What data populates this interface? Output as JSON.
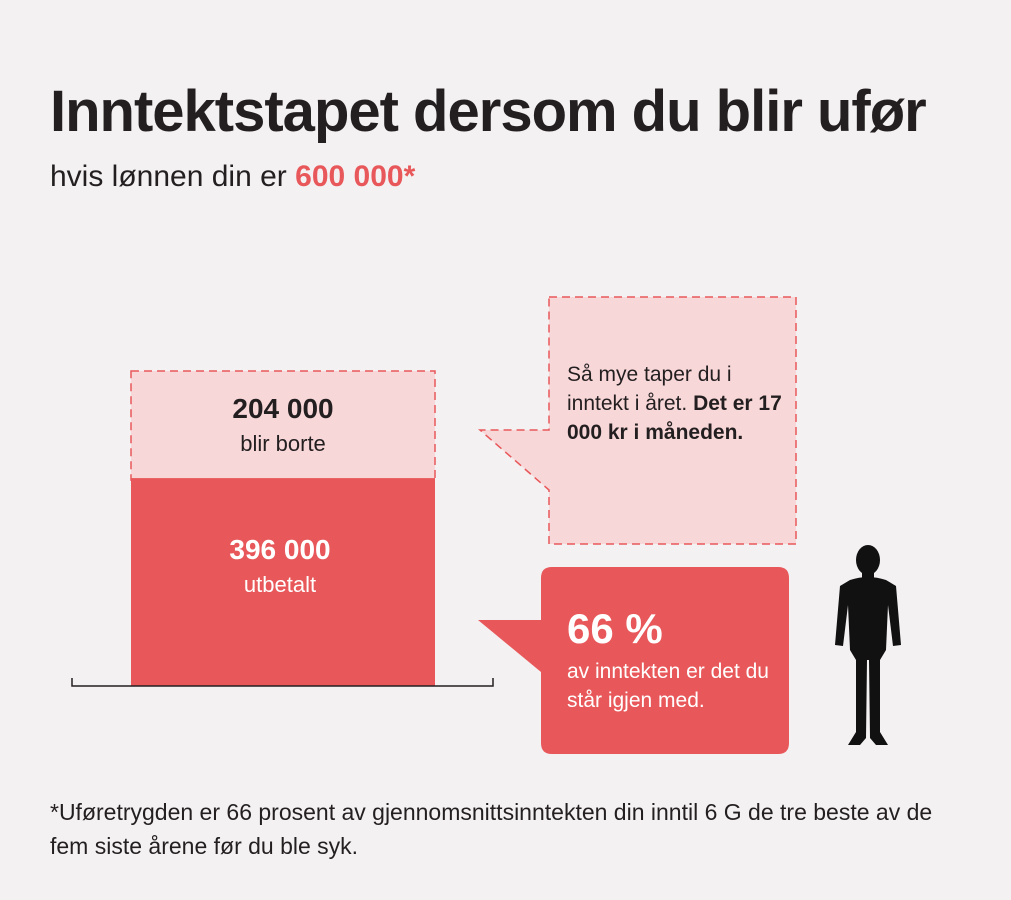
{
  "title": "Inntektstapet dersom du blir ufør",
  "subtitle": {
    "prefix": "hvis lønnen din er ",
    "amount": "600 000*"
  },
  "chart_data": {
    "type": "bar",
    "stacked": true,
    "total": 600000,
    "segments": [
      {
        "value": 396000,
        "value_label": "396 000",
        "label": "utbetalt",
        "color": "#e8585a",
        "style": "solid"
      },
      {
        "value": 204000,
        "value_label": "204 000",
        "label": "blir borte",
        "color": "#f8d7d8",
        "style": "dashed"
      }
    ]
  },
  "callouts": {
    "loss": {
      "line1": "Så mye taper du i inntekt i året.",
      "bold": "Det er 17 000 kr i måneden."
    },
    "share": {
      "percent": "66 %",
      "text": "av inntekten er det du står igjen med."
    }
  },
  "footnote": "*Uføretrygden er 66 prosent av gjennomsnittsinntekten din inntil 6 G de tre beste av de fem siste årene før du ble syk.",
  "colors": {
    "accent": "#e8585a",
    "light": "#f8d7d8",
    "text": "#231f20",
    "background": "#f4f1f2"
  },
  "icons": {
    "person": "person-silhouette-icon"
  }
}
